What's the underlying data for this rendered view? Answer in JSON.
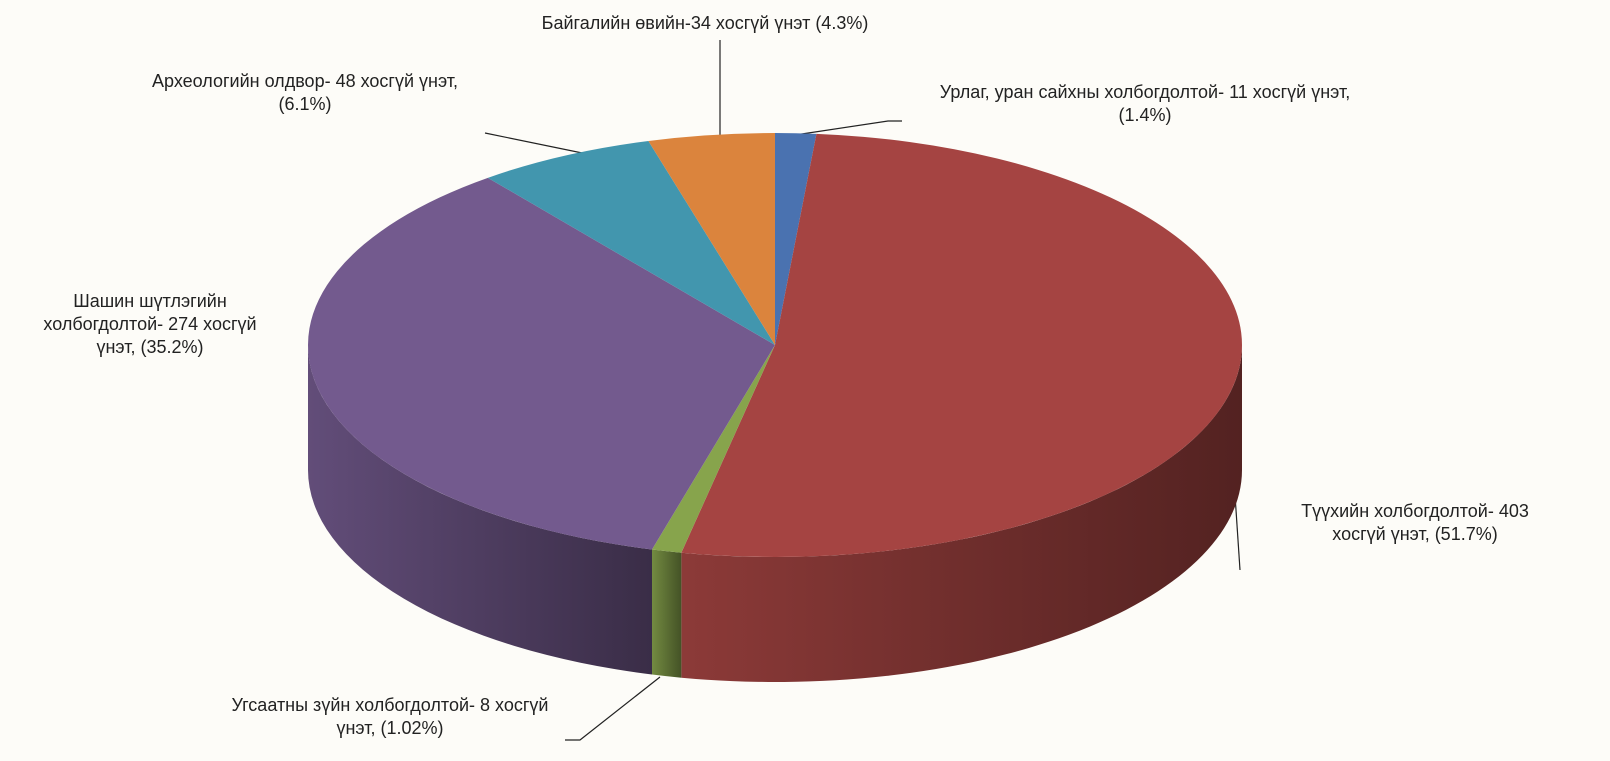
{
  "chart_data": {
    "type": "pie",
    "categories": [
      [
        "Урлаг, уран сайхны холбогдолтой- 11 хосгүй үнэт,",
        "(1.4%)"
      ],
      [
        "Түүхийн холбогдолтой- 403",
        "хосгүй үнэт,  (51.7%)"
      ],
      [
        "Угсаатны зүйн холбогдолтой- 8 хосгүй",
        "үнэт,  (1.02%)"
      ],
      [
        "Шашин шүтлэгийн",
        "холбогдолтой- 274 хосгүй",
        "үнэт, (35.2%)"
      ],
      [
        "Археологийн олдвор- 48 хосгүй үнэт,",
        "(6.1%)"
      ],
      [
        "Байгалийн өвийн-34 хосгүй үнэт (4.3%)"
      ]
    ],
    "values": [
      11,
      403,
      8,
      274,
      48,
      34
    ],
    "colors": [
      "#4a72b0",
      "#a54442",
      "#87a44c",
      "#735a8e",
      "#4296ae",
      "#db843d"
    ]
  }
}
